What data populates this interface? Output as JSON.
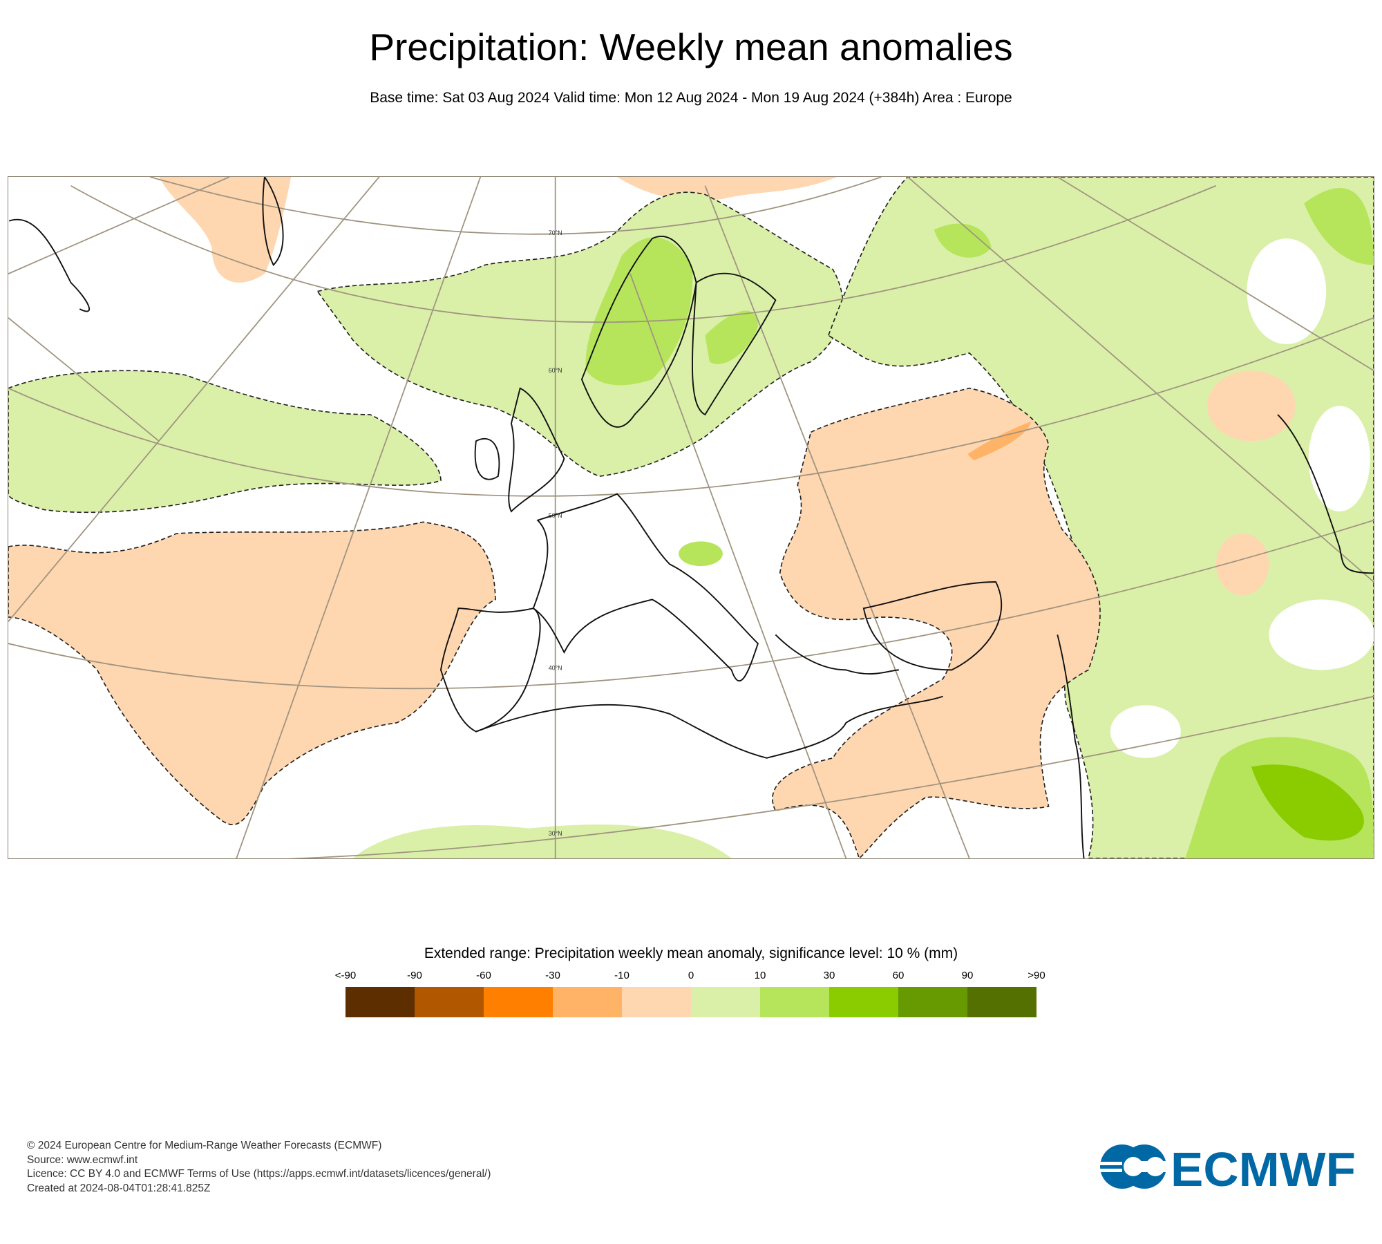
{
  "header": {
    "title": "Precipitation: Weekly mean anomalies",
    "subtitle": "Base time: Sat 03 Aug 2024 Valid time: Mon 12 Aug 2024 - Mon 19 Aug 2024 (+384h) Area : Europe"
  },
  "map": {
    "latitude_labels": [
      "70°N",
      "60°N",
      "50°N",
      "40°N",
      "30°N"
    ],
    "colors": {
      "dry_light": "#fed6b0",
      "dry_medium": "#ffb366",
      "wet_light": "#daf0a8",
      "wet_medium": "#b6e55c",
      "wet_strong": "#8acc00"
    }
  },
  "legend": {
    "title": "Extended range: Precipitation weekly mean anomaly, significance level: 10 % (mm)",
    "ticks": [
      "<-90",
      "-90",
      "-60",
      "-30",
      "-10",
      "0",
      "10",
      "30",
      "60",
      "90",
      ">90"
    ],
    "colors": [
      "#5c2e00",
      "#b05700",
      "#ff8000",
      "#ffb366",
      "#fed6b0",
      "#daf0a8",
      "#b6e55c",
      "#8acc00",
      "#679900",
      "#547000"
    ]
  },
  "footer": {
    "copyright": "© 2024 European Centre for Medium-Range Weather Forecasts (ECMWF)",
    "source": "Source: www.ecmwf.int",
    "licence": "Licence: CC BY 4.0 and ECMWF Terms of Use (https://apps.ecmwf.int/datasets/licences/general/)",
    "created": "Created at 2024-08-04T01:28:41.825Z",
    "logo_text": "ECMWF"
  }
}
